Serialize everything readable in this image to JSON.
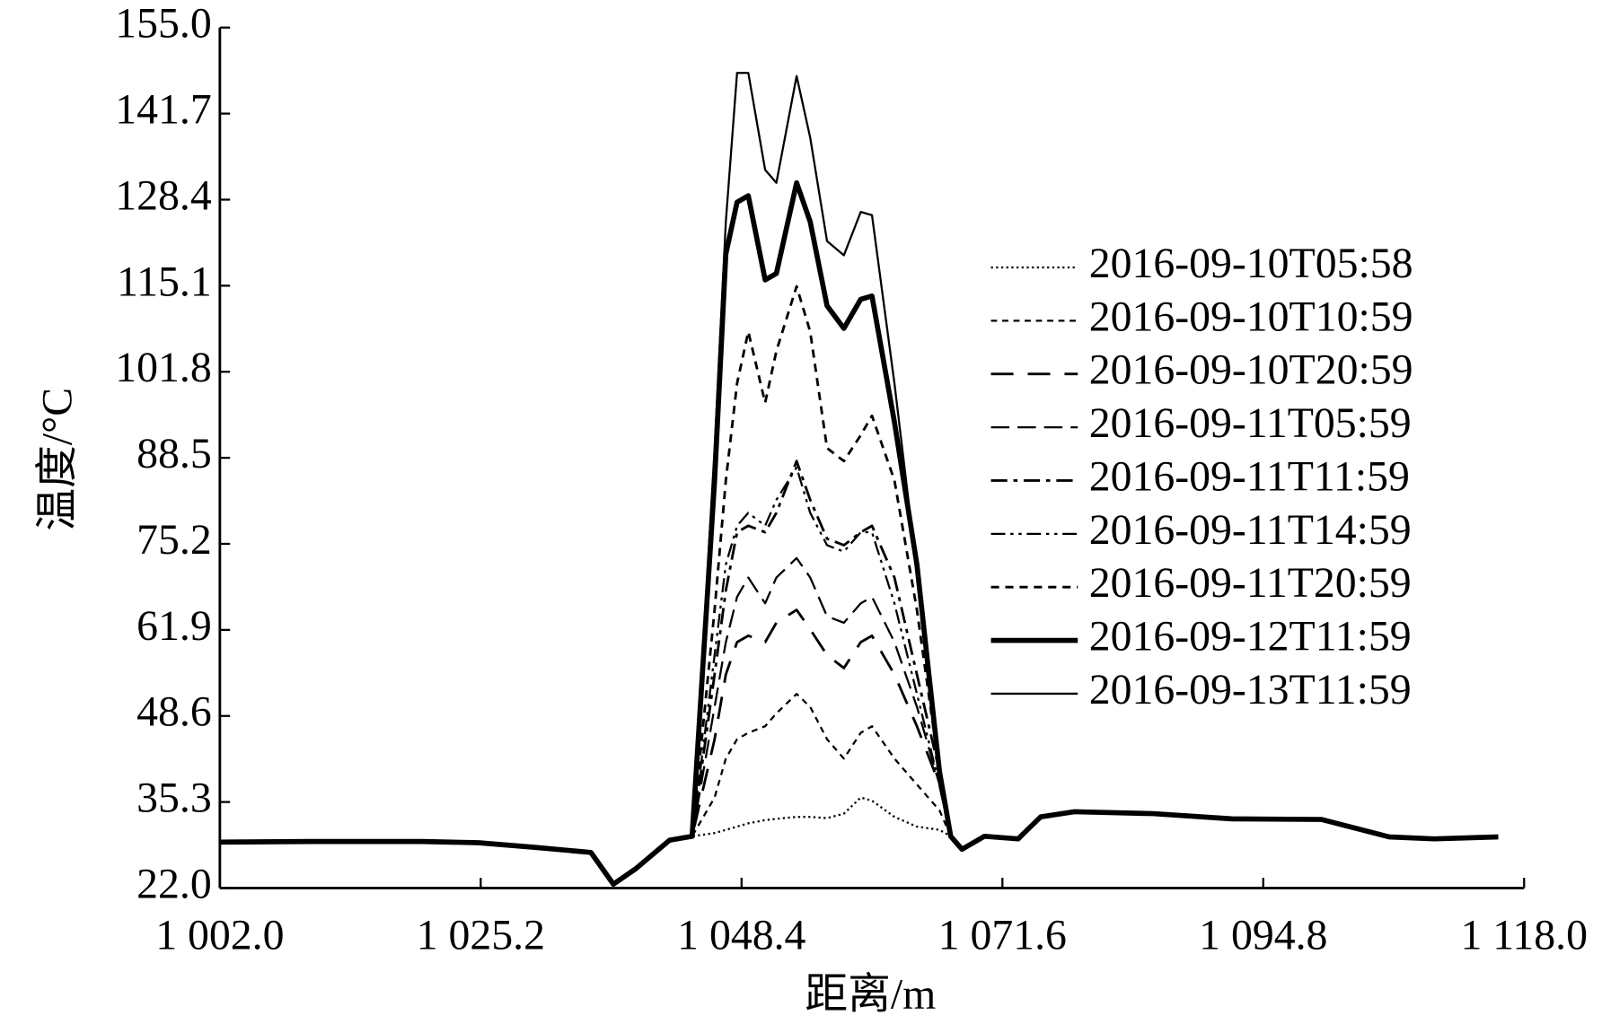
{
  "chart_data": {
    "type": "line",
    "x_label": "距离/m",
    "y_label": "温度/°C",
    "x": [
      1002,
      1010,
      1020,
      1025,
      1030,
      1035,
      1037,
      1039,
      1042,
      1044,
      1046,
      1047,
      1048,
      1049,
      1050.5,
      1051.5,
      1053.3,
      1054.5,
      1056,
      1057.5,
      1059,
      1060,
      1062,
      1064,
      1066,
      1067,
      1068,
      1070,
      1073,
      1075,
      1078,
      1085,
      1092,
      1100,
      1106,
      1110,
      1115.7
    ],
    "xlim": [
      1002,
      1118
    ],
    "xticks": [
      {
        "value": 1002,
        "label": "1 002.0"
      },
      {
        "value": 1025.2,
        "label": "1 025.2"
      },
      {
        "value": 1048.4,
        "label": "1 048.4"
      },
      {
        "value": 1071.6,
        "label": "1 071.6"
      },
      {
        "value": 1094.8,
        "label": "1 094.8"
      },
      {
        "value": 1118,
        "label": "1 118.0"
      }
    ],
    "ylim": [
      22,
      155
    ],
    "yticks": [
      {
        "value": 22,
        "label": "22.0"
      },
      35.3,
      48.6,
      61.9,
      75.2,
      88.5,
      101.8,
      115.1,
      128.4,
      141.7,
      {
        "value": 155,
        "label": "155.0"
      }
    ],
    "legend": "upper right",
    "series": [
      {
        "name": "2016-09-10T05:58",
        "color": "#000000",
        "dash": "2,3",
        "width": 2,
        "values": [
          29.1,
          29.2,
          29.2,
          29.0,
          28.3,
          27.5,
          22.6,
          25,
          29.4,
          30,
          30.5,
          31,
          31.5,
          32,
          32.5,
          32.7,
          33,
          33,
          32.8,
          33.5,
          36,
          35.5,
          33,
          31.5,
          31,
          30,
          28,
          30,
          29.6,
          33,
          33.8,
          33.5,
          32.7,
          32.6,
          29.9,
          29.6,
          29.9
        ]
      },
      {
        "name": "2016-09-10T10:59",
        "color": "#000000",
        "dash": "6,5",
        "width": 2,
        "values": [
          29.1,
          29.2,
          29.2,
          29.0,
          28.3,
          27.5,
          22.6,
          25,
          29.4,
          30,
          36,
          42,
          45,
          46,
          47,
          49,
          52,
          50,
          45,
          42,
          46,
          47,
          42,
          38,
          34,
          30,
          28,
          30,
          29.6,
          33,
          33.8,
          33.5,
          32.7,
          32.6,
          29.9,
          29.6,
          29.9
        ]
      },
      {
        "name": "2016-09-10T20:59",
        "color": "#000000",
        "dash": "22,14",
        "width": 2.5,
        "values": [
          29.1,
          29.2,
          29.2,
          29.0,
          28.3,
          27.5,
          22.6,
          25,
          29.4,
          30,
          45,
          55,
          60,
          61,
          60,
          63,
          65,
          62,
          58,
          56,
          60,
          61,
          55,
          47,
          38,
          30,
          28,
          30,
          29.6,
          33,
          33.8,
          33.5,
          32.7,
          32.6,
          29.9,
          29.6,
          29.9
        ]
      },
      {
        "name": "2016-09-11T05:59",
        "color": "#000000",
        "dash": "18,8",
        "width": 2,
        "values": [
          29.1,
          29.2,
          29.2,
          29.0,
          28.3,
          27.5,
          22.6,
          25,
          29.4,
          30,
          50,
          60,
          67,
          70,
          66,
          70,
          73,
          70,
          64,
          63,
          66,
          67,
          60,
          50,
          38,
          30,
          28,
          30,
          29.6,
          33,
          33.8,
          33.5,
          32.7,
          32.6,
          29.9,
          29.6,
          29.9
        ]
      },
      {
        "name": "2016-09-11T11:59",
        "color": "#000000",
        "dash": "16,6,4,6",
        "width": 2.5,
        "values": [
          29.1,
          29.2,
          29.2,
          29.0,
          28.3,
          27.5,
          22.6,
          25,
          29.4,
          30,
          55,
          68,
          77,
          78,
          77,
          80,
          88,
          82,
          76,
          75,
          77,
          78,
          70,
          55,
          40,
          30,
          28,
          30,
          29.6,
          33,
          33.8,
          33.5,
          32.7,
          32.6,
          29.9,
          29.6,
          29.9
        ]
      },
      {
        "name": "2016-09-11T14:59",
        "color": "#000000",
        "dash": "14,5,3,5,3,5",
        "width": 2,
        "values": [
          29.1,
          29.2,
          29.2,
          29.0,
          28.3,
          27.5,
          22.6,
          25,
          29.4,
          30,
          58,
          72,
          78,
          80,
          78,
          82,
          87,
          80,
          75,
          74,
          77,
          77,
          66,
          52,
          38,
          30,
          28,
          30,
          29.6,
          33,
          33.8,
          33.5,
          32.7,
          32.6,
          29.9,
          29.6,
          29.9
        ]
      },
      {
        "name": "2016-09-11T20:59",
        "color": "#000000",
        "dash": "8,6",
        "width": 2.5,
        "values": [
          29.1,
          29.2,
          29.2,
          29.0,
          28.3,
          27.5,
          22.6,
          25,
          29.4,
          30,
          65,
          85,
          100,
          108,
          97,
          105,
          115,
          108,
          90,
          88,
          92,
          95,
          85,
          65,
          40,
          30,
          28,
          30,
          29.6,
          33,
          33.8,
          33.5,
          32.7,
          32.6,
          29.9,
          29.6,
          29.9
        ]
      },
      {
        "name": "2016-09-12T11:59",
        "color": "#000000",
        "dash": "none",
        "width": 5,
        "values": [
          29.1,
          29.2,
          29.2,
          29.0,
          28.3,
          27.5,
          22.6,
          25,
          29.4,
          30,
          85,
          120,
          128,
          129,
          116,
          117,
          131,
          125,
          112,
          108.5,
          113,
          113.5,
          94,
          72,
          40,
          30,
          28,
          30,
          29.6,
          33,
          33.8,
          33.5,
          32.7,
          32.6,
          29.9,
          29.6,
          29.9
        ]
      },
      {
        "name": "2016-09-13T11:59",
        "color": "#000000",
        "dash": "none",
        "width": 2,
        "values": [
          29.1,
          29.2,
          29.2,
          29.0,
          28.3,
          27.5,
          22.6,
          25,
          29.4,
          30,
          90,
          125,
          148,
          148,
          133,
          131,
          147.5,
          138,
          122,
          119.8,
          126.5,
          126,
          100,
          71,
          39,
          30,
          28,
          30,
          29.6,
          33,
          33.8,
          33.5,
          32.7,
          32.6,
          29.9,
          29.6,
          29.9
        ]
      }
    ]
  }
}
